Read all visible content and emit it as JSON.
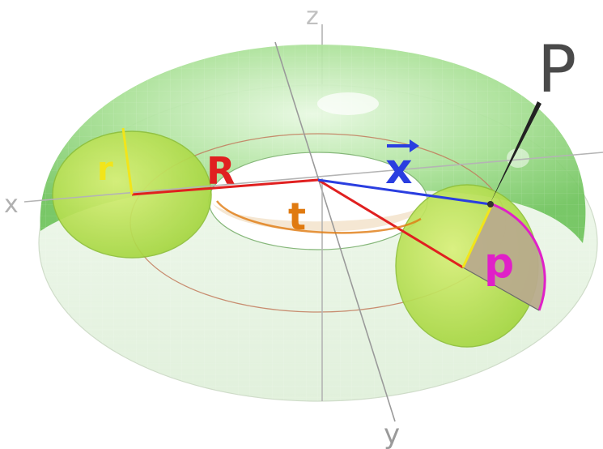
{
  "axes": {
    "x": "x",
    "y": "y",
    "z": "z"
  },
  "labels": {
    "major_radius": "R",
    "minor_radius": "r",
    "toroidal_angle": "t",
    "poloidal_angle": "p",
    "vector_x": "x",
    "point": "P"
  },
  "colors": {
    "torus_surface": "#9ee08a",
    "torus_dark": "#5cb84a",
    "cut_disc": "#c8e83a",
    "major_radius": "#e02020",
    "minor_radius": "#f2e51a",
    "angle_t": "#e07a10",
    "angle_p": "#e020c8",
    "vector_x": "#2a3ee0",
    "point_pointer": "#222222",
    "axes": "#a8a8a8",
    "wedge_fill": "#b8ab8c"
  },
  "icons": [
    "vector-arrow-icon"
  ]
}
